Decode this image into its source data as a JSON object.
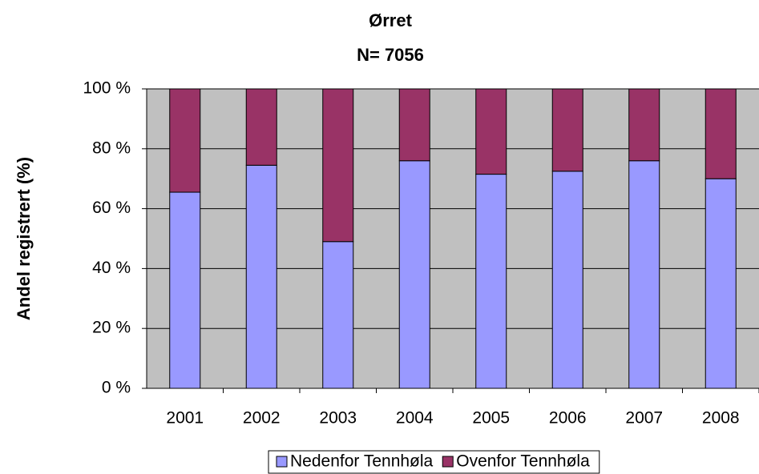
{
  "chart_data": {
    "type": "stacked_bar",
    "title": "Ørret",
    "subtitle": "N= 7056",
    "y_label": "Andel registrert (%)",
    "categories": [
      "2001",
      "2002",
      "2003",
      "2004",
      "2005",
      "2006",
      "2007",
      "2008"
    ],
    "series": [
      {
        "name": "Nedenfor Tennhøla",
        "color": "#9999ff",
        "values": [
          65.5,
          74.5,
          49,
          76,
          71.5,
          72.5,
          76,
          70
        ]
      },
      {
        "name": "Ovenfor Tennhøla",
        "color": "#993366",
        "values": [
          34.5,
          25.5,
          51,
          24,
          28.5,
          27.5,
          24,
          30
        ]
      }
    ],
    "ylim": [
      0,
      100
    ],
    "yticks": [
      {
        "value": 0,
        "label": "0 %"
      },
      {
        "value": 20,
        "label": "20 %"
      },
      {
        "value": 40,
        "label": "40 %"
      },
      {
        "value": 60,
        "label": "60 %"
      },
      {
        "value": 80,
        "label": "80 %"
      },
      {
        "value": 100,
        "label": "100 %"
      }
    ],
    "grid": true,
    "plot_background": "#c0c0c0",
    "legend": "bottom"
  }
}
